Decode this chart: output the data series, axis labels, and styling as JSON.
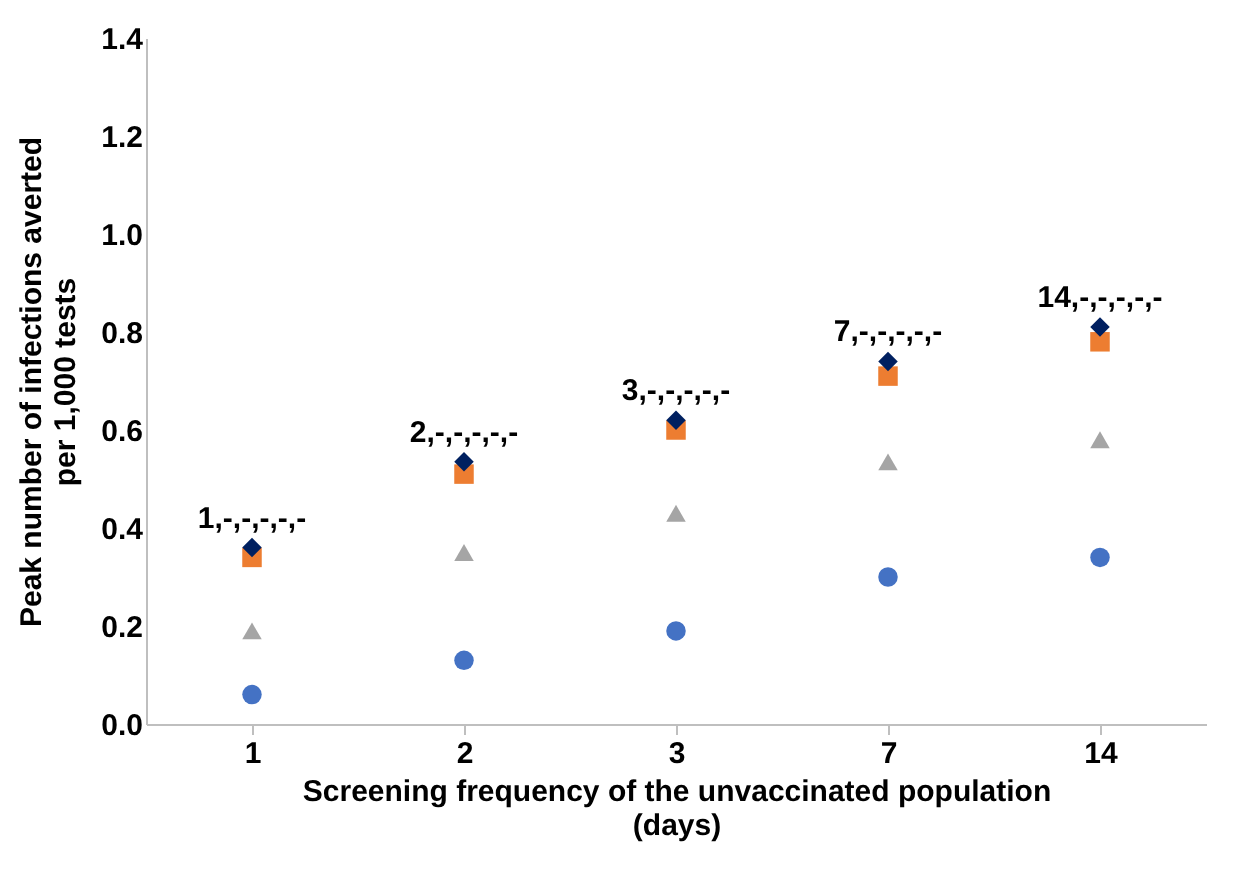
{
  "chart_data": {
    "type": "scatter",
    "categories": [
      "1",
      "2",
      "3",
      "7",
      "14"
    ],
    "xlabel": "Screening frequency of the unvaccinated population (days)",
    "ylabel": "Peak number of infections averted per 1,000 tests",
    "ylim": [
      0,
      1.4
    ],
    "yticks": [
      {
        "value": 0,
        "label": "0.0"
      },
      {
        "value": 0.2,
        "label": "0.2"
      },
      {
        "value": 0.4,
        "label": "0.4"
      },
      {
        "value": 0.6,
        "label": "0.6"
      },
      {
        "value": 0.8,
        "label": "0.8"
      },
      {
        "value": 1,
        "label": "1.0"
      },
      {
        "value": 1.2,
        "label": "1.2"
      },
      {
        "value": 1.4,
        "label": "1.4"
      }
    ],
    "grid": false,
    "series": [
      {
        "color": "#4472c4",
        "marker": "circle",
        "values": [
          0.06,
          0.13,
          0.19,
          0.3,
          0.34
        ]
      },
      {
        "color": "#a5a5a5",
        "marker": "triangle",
        "values": [
          0.19,
          0.35,
          0.43,
          0.535,
          0.58
        ]
      },
      {
        "color": "#ed7d31",
        "marker": "square",
        "values": [
          0.34,
          0.51,
          0.6,
          0.71,
          0.78
        ]
      },
      {
        "color": "#002060",
        "marker": "diamond",
        "values": [
          0.36,
          0.535,
          0.62,
          0.74,
          0.81
        ]
      }
    ],
    "annotations": [
      {
        "text": "1,-,-,-,-,-",
        "x": "1",
        "y": 0.36
      },
      {
        "text": "2,-,-,-,-,-",
        "x": "2",
        "y": 0.535
      },
      {
        "text": "3,-,-,-,-,-",
        "x": "3",
        "y": 0.62
      },
      {
        "text": "7,-,-,-,-,-",
        "x": "7",
        "y": 0.74
      },
      {
        "text": "14,-,-,-,-,-",
        "x": "14",
        "y": 0.81
      }
    ]
  }
}
